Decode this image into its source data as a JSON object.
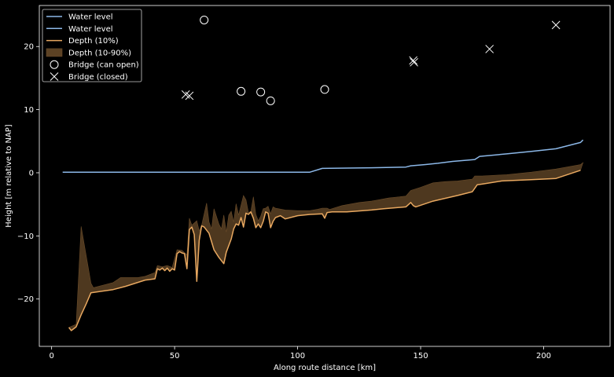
{
  "chart_data": {
    "type": "line",
    "xlabel": "Along route distance [km]",
    "ylabel": "Height [m relative to NAP]",
    "xlim": [
      -5,
      227
    ],
    "ylim": [
      -27.5,
      26.5
    ],
    "xticks": [
      0,
      50,
      100,
      150,
      200
    ],
    "yticks": [
      -20,
      -10,
      0,
      10,
      20
    ],
    "grid": false,
    "legend_position": "top-left",
    "legend": [
      {
        "label": "Water level",
        "kind": "line",
        "color": "#8cb8e8"
      },
      {
        "label": "Water level",
        "kind": "line",
        "color": "#8cb8e8"
      },
      {
        "label": "Depth (10%)",
        "kind": "line",
        "color": "#e8a860"
      },
      {
        "label": "Depth (10-90%)",
        "kind": "patch",
        "color": "#5c4224"
      },
      {
        "label": "Bridge (can open)",
        "kind": "circle",
        "color": "#ffffff"
      },
      {
        "label": "Bridge (closed)",
        "kind": "cross",
        "color": "#ffffff"
      }
    ],
    "series": [
      {
        "name": "Water level",
        "color": "#8cb8e8",
        "points": [
          [
            4.5,
            0.1
          ],
          [
            20,
            0.1
          ],
          [
            60,
            0.1
          ],
          [
            105,
            0.1
          ],
          [
            110,
            0.7
          ],
          [
            130,
            0.8
          ],
          [
            144,
            0.9
          ],
          [
            146,
            1.1
          ],
          [
            152,
            1.3
          ],
          [
            157,
            1.5
          ],
          [
            163,
            1.8
          ],
          [
            172,
            2.1
          ],
          [
            174,
            2.6
          ],
          [
            185,
            3.0
          ],
          [
            195,
            3.4
          ],
          [
            205,
            3.8
          ],
          [
            215,
            4.8
          ],
          [
            216,
            5.2
          ]
        ]
      },
      {
        "name": "Depth (10%)",
        "color": "#e8a860",
        "points": [
          [
            7,
            -24.5
          ],
          [
            8,
            -25
          ],
          [
            10,
            -24.4
          ],
          [
            12,
            -22.5
          ],
          [
            14,
            -20.8
          ],
          [
            16,
            -19
          ],
          [
            25,
            -18.5
          ],
          [
            30,
            -18
          ],
          [
            38,
            -17
          ],
          [
            42,
            -16.8
          ],
          [
            43,
            -15.2
          ],
          [
            44,
            -15.4
          ],
          [
            45,
            -15.1
          ],
          [
            46,
            -15.5
          ],
          [
            47,
            -15.1
          ],
          [
            48,
            -15.6
          ],
          [
            49,
            -15.2
          ],
          [
            50,
            -15.4
          ],
          [
            51,
            -12.8
          ],
          [
            52,
            -12.5
          ],
          [
            53,
            -12.7
          ],
          [
            54,
            -12.8
          ],
          [
            55,
            -15.2
          ],
          [
            56,
            -9
          ],
          [
            57,
            -8.6
          ],
          [
            58,
            -9.8
          ],
          [
            59,
            -17.2
          ],
          [
            60,
            -10.7
          ],
          [
            61,
            -8.4
          ],
          [
            62,
            -8.6
          ],
          [
            64,
            -9.6
          ],
          [
            66,
            -12.2
          ],
          [
            68,
            -13.4
          ],
          [
            70,
            -14.4
          ],
          [
            71,
            -12.6
          ],
          [
            73,
            -10.5
          ],
          [
            74,
            -8.9
          ],
          [
            75,
            -8.1
          ],
          [
            76,
            -8.3
          ],
          [
            77,
            -7.1
          ],
          [
            78,
            -8.6
          ],
          [
            79,
            -6.4
          ],
          [
            80,
            -6.6
          ],
          [
            81,
            -6.2
          ],
          [
            82,
            -7.2
          ],
          [
            83,
            -8.7
          ],
          [
            84,
            -8.1
          ],
          [
            85,
            -8.7
          ],
          [
            86,
            -7.7
          ],
          [
            87,
            -6.2
          ],
          [
            88,
            -6.4
          ],
          [
            89,
            -8.7
          ],
          [
            90,
            -7.7
          ],
          [
            91,
            -7.1
          ],
          [
            93,
            -6.8
          ],
          [
            95,
            -7.3
          ],
          [
            100,
            -6.8
          ],
          [
            105,
            -6.6
          ],
          [
            110,
            -6.5
          ],
          [
            111,
            -7.2
          ],
          [
            112,
            -6.3
          ],
          [
            114,
            -6.2
          ],
          [
            120,
            -6.2
          ],
          [
            130,
            -5.9
          ],
          [
            135,
            -5.7
          ],
          [
            144,
            -5.4
          ],
          [
            146,
            -4.7
          ],
          [
            147,
            -5.2
          ],
          [
            148,
            -5.4
          ],
          [
            155,
            -4.5
          ],
          [
            165,
            -3.6
          ],
          [
            171,
            -3
          ],
          [
            173,
            -1.9
          ],
          [
            175,
            -1.8
          ],
          [
            183,
            -1.3
          ],
          [
            195,
            -1.1
          ],
          [
            205,
            -0.9
          ],
          [
            215,
            0.4
          ]
        ]
      }
    ],
    "depth_band": {
      "name": "Depth (10-90%)",
      "color": "#5c4224",
      "upper": [
        [
          7,
          -24.5
        ],
        [
          10,
          -24
        ],
        [
          12,
          -8.5
        ],
        [
          16,
          -17.5
        ],
        [
          17,
          -18.2
        ],
        [
          25,
          -17.4
        ],
        [
          28,
          -16.6
        ],
        [
          35,
          -16.6
        ],
        [
          38,
          -16.4
        ],
        [
          42,
          -15.8
        ],
        [
          43,
          -14.7
        ],
        [
          45,
          -14.9
        ],
        [
          47,
          -14.7
        ],
        [
          49,
          -15
        ],
        [
          51,
          -12.2
        ],
        [
          53,
          -12.3
        ],
        [
          55,
          -13
        ],
        [
          56,
          -7.2
        ],
        [
          57,
          -8.3
        ],
        [
          59,
          -7.6
        ],
        [
          60,
          -9.2
        ],
        [
          61,
          -8.3
        ],
        [
          63,
          -4.8
        ],
        [
          64,
          -7.8
        ],
        [
          65,
          -8.9
        ],
        [
          66,
          -5.7
        ],
        [
          68,
          -8.1
        ],
        [
          69,
          -8.9
        ],
        [
          70,
          -6.7
        ],
        [
          71,
          -9.4
        ],
        [
          72,
          -6.7
        ],
        [
          73,
          -6.1
        ],
        [
          74,
          -7.8
        ],
        [
          75,
          -4.9
        ],
        [
          76,
          -6.7
        ],
        [
          78,
          -3.6
        ],
        [
          79,
          -4.3
        ],
        [
          80,
          -6.3
        ],
        [
          81,
          -6.1
        ],
        [
          82,
          -3.8
        ],
        [
          83,
          -6.6
        ],
        [
          84,
          -7.6
        ],
        [
          85,
          -6.9
        ],
        [
          86,
          -5.7
        ],
        [
          87,
          -5.6
        ],
        [
          88,
          -5.3
        ],
        [
          89,
          -6.5
        ],
        [
          90,
          -5.4
        ],
        [
          91,
          -5.6
        ],
        [
          95,
          -5.9
        ],
        [
          100,
          -6
        ],
        [
          105,
          -6
        ],
        [
          108,
          -5.8
        ],
        [
          110,
          -5.6
        ],
        [
          112,
          -5.6
        ],
        [
          113,
          -5.8
        ],
        [
          118,
          -5.2
        ],
        [
          125,
          -4.7
        ],
        [
          130,
          -4.5
        ],
        [
          137,
          -4
        ],
        [
          144,
          -3.7
        ],
        [
          146,
          -2.8
        ],
        [
          150,
          -2.3
        ],
        [
          155,
          -1.6
        ],
        [
          160,
          -1.4
        ],
        [
          165,
          -1.3
        ],
        [
          171,
          -1
        ],
        [
          172,
          -0.5
        ],
        [
          175,
          -0.5
        ],
        [
          185,
          -0.3
        ],
        [
          195,
          0.1
        ],
        [
          205,
          0.6
        ],
        [
          215,
          1.3
        ],
        [
          216,
          1.6
        ]
      ]
    },
    "bridges_can_open": [
      [
        62,
        24.2
      ],
      [
        77,
        12.9
      ],
      [
        85,
        12.8
      ],
      [
        89,
        11.4
      ],
      [
        111,
        13.2
      ]
    ],
    "bridges_closed": [
      [
        54.5,
        12.4
      ],
      [
        56,
        12.2
      ],
      [
        147,
        17.8
      ],
      [
        147.3,
        17.5
      ],
      [
        178,
        19.6
      ],
      [
        205,
        23.4
      ]
    ]
  }
}
